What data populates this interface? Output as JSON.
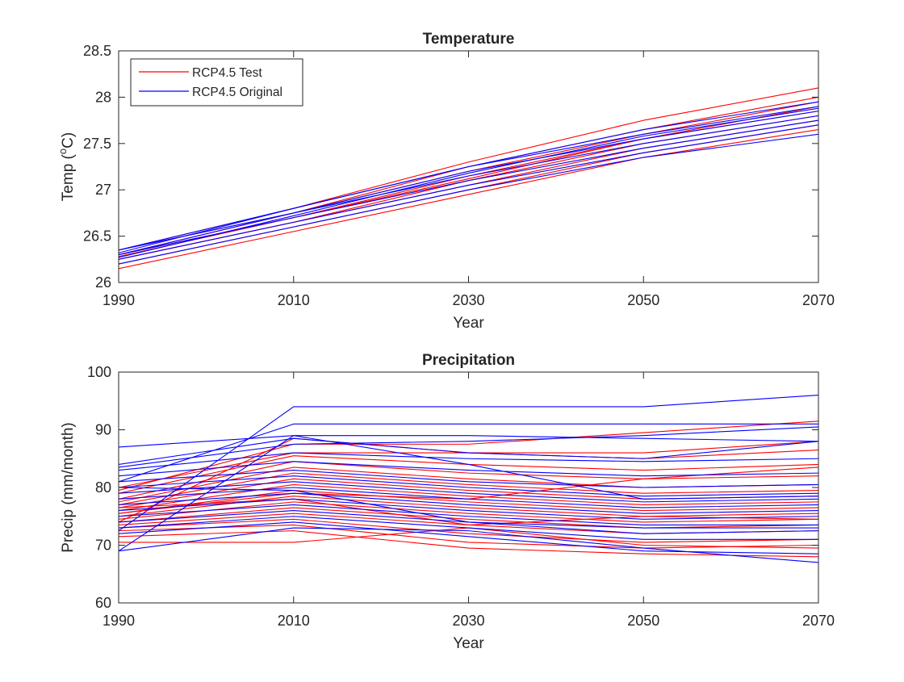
{
  "chart_data": [
    {
      "type": "line",
      "title": "Temperature",
      "xlabel": "Year",
      "ylabel_prefix": "Temp (",
      "ylabel_sup": "o",
      "ylabel_suffix": "C)",
      "xlim": [
        1990,
        2070
      ],
      "ylim": [
        26,
        28.5
      ],
      "xticks": [
        1990,
        2010,
        2030,
        2050,
        2070
      ],
      "xtick_labels": [
        "1990",
        "2010",
        "2030",
        "2050",
        "2070"
      ],
      "yticks": [
        26,
        26.5,
        27,
        27.5,
        28,
        28.5
      ],
      "ytick_labels": [
        "26",
        "26.5",
        "27",
        "27.5",
        "28",
        "28.5"
      ],
      "legend": {
        "location": "top-left",
        "entries": [
          {
            "label": "RCP4.5 Test",
            "color": "#ff0000"
          },
          {
            "label": "RCP4.5 Original",
            "color": "#0000ff"
          }
        ]
      },
      "x": [
        1990,
        2010,
        2030,
        2050,
        2070
      ],
      "series": [
        {
          "group": "RCP4.5 Test",
          "color": "#ff0000",
          "values": [
            26.15,
            26.55,
            26.95,
            27.35,
            27.65
          ]
        },
        {
          "group": "RCP4.5 Test",
          "color": "#ff0000",
          "values": [
            26.2,
            26.6,
            27.0,
            27.4,
            27.7
          ]
        },
        {
          "group": "RCP4.5 Test",
          "color": "#ff0000",
          "values": [
            26.25,
            26.65,
            27.05,
            27.45,
            27.75
          ]
        },
        {
          "group": "RCP4.5 Test",
          "color": "#ff0000",
          "values": [
            26.25,
            26.65,
            27.1,
            27.5,
            27.8
          ]
        },
        {
          "group": "RCP4.5 Test",
          "color": "#ff0000",
          "values": [
            26.3,
            26.7,
            27.15,
            27.55,
            27.9
          ]
        },
        {
          "group": "RCP4.5 Test",
          "color": "#ff0000",
          "values": [
            26.3,
            26.75,
            27.2,
            27.6,
            27.95
          ]
        },
        {
          "group": "RCP4.5 Test",
          "color": "#ff0000",
          "values": [
            26.35,
            26.75,
            27.25,
            27.65,
            28.0
          ]
        },
        {
          "group": "RCP4.5 Test",
          "color": "#ff0000",
          "values": [
            26.35,
            26.8,
            27.3,
            27.75,
            28.1
          ]
        },
        {
          "group": "RCP4.5 Test",
          "color": "#ff0000",
          "values": [
            26.28,
            26.7,
            27.12,
            27.55,
            27.85
          ]
        },
        {
          "group": "RCP4.5 Original",
          "color": "#0000ff",
          "values": [
            26.2,
            26.6,
            27.0,
            27.35,
            27.6
          ]
        },
        {
          "group": "RCP4.5 Original",
          "color": "#0000ff",
          "values": [
            26.25,
            26.65,
            27.05,
            27.4,
            27.7
          ]
        },
        {
          "group": "RCP4.5 Original",
          "color": "#0000ff",
          "values": [
            26.3,
            26.7,
            27.1,
            27.45,
            27.75
          ]
        },
        {
          "group": "RCP4.5 Original",
          "color": "#0000ff",
          "values": [
            26.3,
            26.75,
            27.15,
            27.5,
            27.8
          ]
        },
        {
          "group": "RCP4.5 Original",
          "color": "#0000ff",
          "values": [
            26.35,
            26.75,
            27.2,
            27.55,
            27.85
          ]
        },
        {
          "group": "RCP4.5 Original",
          "color": "#0000ff",
          "values": [
            26.35,
            26.8,
            27.25,
            27.6,
            27.9
          ]
        },
        {
          "group": "RCP4.5 Original",
          "color": "#0000ff",
          "values": [
            26.32,
            26.8,
            27.25,
            27.65,
            27.95
          ]
        },
        {
          "group": "RCP4.5 Original",
          "color": "#0000ff",
          "values": [
            26.27,
            26.72,
            27.18,
            27.58,
            27.88
          ]
        }
      ]
    },
    {
      "type": "line",
      "title": "Precipitation",
      "xlabel": "Year",
      "ylabel": "Precip (mm/month)",
      "xlim": [
        1990,
        2070
      ],
      "ylim": [
        60,
        100
      ],
      "xticks": [
        1990,
        2010,
        2030,
        2050,
        2070
      ],
      "xtick_labels": [
        "1990",
        "2010",
        "2030",
        "2050",
        "2070"
      ],
      "yticks": [
        60,
        70,
        80,
        90,
        100
      ],
      "ytick_labels": [
        "60",
        "70",
        "80",
        "90",
        "100"
      ],
      "x": [
        1990,
        2010,
        2030,
        2050,
        2070
      ],
      "series": [
        {
          "group": "RCP4.5 Test",
          "color": "#ff0000",
          "values": [
            70.5,
            70.5,
            73,
            70,
            69.5
          ]
        },
        {
          "group": "RCP4.5 Test",
          "color": "#ff0000",
          "values": [
            71.5,
            72.5,
            69.5,
            68.5,
            68
          ]
        },
        {
          "group": "RCP4.5 Test",
          "color": "#ff0000",
          "values": [
            72.5,
            73.5,
            70.5,
            69.5,
            70
          ]
        },
        {
          "group": "RCP4.5 Test",
          "color": "#ff0000",
          "values": [
            73,
            74.5,
            72,
            70.5,
            71
          ]
        },
        {
          "group": "RCP4.5 Test",
          "color": "#ff0000",
          "values": [
            73.5,
            75.5,
            73.5,
            72,
            72.5
          ]
        },
        {
          "group": "RCP4.5 Test",
          "color": "#ff0000",
          "values": [
            74,
            76.5,
            74.5,
            73,
            73.5
          ]
        },
        {
          "group": "RCP4.5 Test",
          "color": "#ff0000",
          "values": [
            74.5,
            77.5,
            75.5,
            74,
            74.5
          ]
        },
        {
          "group": "RCP4.5 Test",
          "color": "#ff0000",
          "values": [
            75,
            78.5,
            76.5,
            75,
            75.5
          ]
        },
        {
          "group": "RCP4.5 Test",
          "color": "#ff0000",
          "values": [
            75.5,
            79.5,
            77.5,
            76,
            76.5
          ]
        },
        {
          "group": "RCP4.5 Test",
          "color": "#ff0000",
          "values": [
            76,
            80.5,
            78.5,
            77,
            77.5
          ]
        },
        {
          "group": "RCP4.5 Test",
          "color": "#ff0000",
          "values": [
            76.5,
            81.5,
            79.5,
            78,
            78.5
          ]
        },
        {
          "group": "RCP4.5 Test",
          "color": "#ff0000",
          "values": [
            77,
            82.5,
            80.5,
            79,
            79.5
          ]
        },
        {
          "group": "RCP4.5 Test",
          "color": "#ff0000",
          "values": [
            77.5,
            83.5,
            81.5,
            80,
            80.5
          ]
        },
        {
          "group": "RCP4.5 Test",
          "color": "#ff0000",
          "values": [
            78,
            84.5,
            82.5,
            81.5,
            82
          ]
        },
        {
          "group": "RCP4.5 Test",
          "color": "#ff0000",
          "values": [
            79,
            85.5,
            84,
            83,
            84
          ]
        },
        {
          "group": "RCP4.5 Test",
          "color": "#ff0000",
          "values": [
            80,
            86,
            86,
            86,
            88
          ]
        },
        {
          "group": "RCP4.5 Test",
          "color": "#ff0000",
          "values": [
            79.5,
            87.5,
            87.5,
            89.5,
            91.5
          ]
        },
        {
          "group": "RCP4.5 Test",
          "color": "#ff0000",
          "values": [
            74,
            88.5,
            86,
            85,
            86.5
          ]
        },
        {
          "group": "RCP4.5 Test",
          "color": "#ff0000",
          "values": [
            75.5,
            79,
            78,
            81.5,
            83.5
          ]
        },
        {
          "group": "RCP4.5 Test",
          "color": "#ff0000",
          "values": [
            76.5,
            78,
            73.5,
            75,
            74.5
          ]
        },
        {
          "group": "RCP4.5 Original",
          "color": "#0000ff",
          "values": [
            69,
            73,
            72.5,
            69.5,
            67
          ]
        },
        {
          "group": "RCP4.5 Original",
          "color": "#0000ff",
          "values": [
            69,
            89,
            84,
            78,
            78.5
          ]
        },
        {
          "group": "RCP4.5 Original",
          "color": "#0000ff",
          "values": [
            72,
            74,
            71.5,
            69,
            68.5
          ]
        },
        {
          "group": "RCP4.5 Original",
          "color": "#0000ff",
          "values": [
            73,
            75,
            73,
            71,
            71
          ]
        },
        {
          "group": "RCP4.5 Original",
          "color": "#0000ff",
          "values": [
            74,
            76,
            74,
            72,
            72.5
          ]
        },
        {
          "group": "RCP4.5 Original",
          "color": "#0000ff",
          "values": [
            75,
            77,
            75,
            73.5,
            73.5
          ]
        },
        {
          "group": "RCP4.5 Original",
          "color": "#0000ff",
          "values": [
            76,
            78,
            76,
            74.5,
            75
          ]
        },
        {
          "group": "RCP4.5 Original",
          "color": "#0000ff",
          "values": [
            77,
            79,
            77,
            75.5,
            76
          ]
        },
        {
          "group": "RCP4.5 Original",
          "color": "#0000ff",
          "values": [
            78,
            80,
            78,
            76.5,
            77
          ]
        },
        {
          "group": "RCP4.5 Original",
          "color": "#0000ff",
          "values": [
            79,
            81,
            79,
            77.5,
            78
          ]
        },
        {
          "group": "RCP4.5 Original",
          "color": "#0000ff",
          "values": [
            80,
            82,
            80,
            78.5,
            79
          ]
        },
        {
          "group": "RCP4.5 Original",
          "color": "#0000ff",
          "values": [
            81,
            83,
            81,
            80,
            80.5
          ]
        },
        {
          "group": "RCP4.5 Original",
          "color": "#0000ff",
          "values": [
            82,
            84.5,
            83,
            82,
            82.5
          ]
        },
        {
          "group": "RCP4.5 Original",
          "color": "#0000ff",
          "values": [
            83,
            86,
            85,
            84.5,
            85
          ]
        },
        {
          "group": "RCP4.5 Original",
          "color": "#0000ff",
          "values": [
            84,
            88.5,
            86,
            85,
            88
          ]
        },
        {
          "group": "RCP4.5 Original",
          "color": "#0000ff",
          "values": [
            87,
            89,
            89,
            88.5,
            88
          ]
        },
        {
          "group": "RCP4.5 Original",
          "color": "#0000ff",
          "values": [
            81,
            91,
            91,
            91,
            91
          ]
        },
        {
          "group": "RCP4.5 Original",
          "color": "#0000ff",
          "values": [
            72.5,
            94,
            94,
            94,
            96
          ]
        },
        {
          "group": "RCP4.5 Original",
          "color": "#0000ff",
          "values": [
            83.5,
            87.5,
            88,
            89,
            90.5
          ]
        },
        {
          "group": "RCP4.5 Original",
          "color": "#0000ff",
          "values": [
            80,
            79.5,
            74,
            73,
            73
          ]
        }
      ]
    }
  ]
}
